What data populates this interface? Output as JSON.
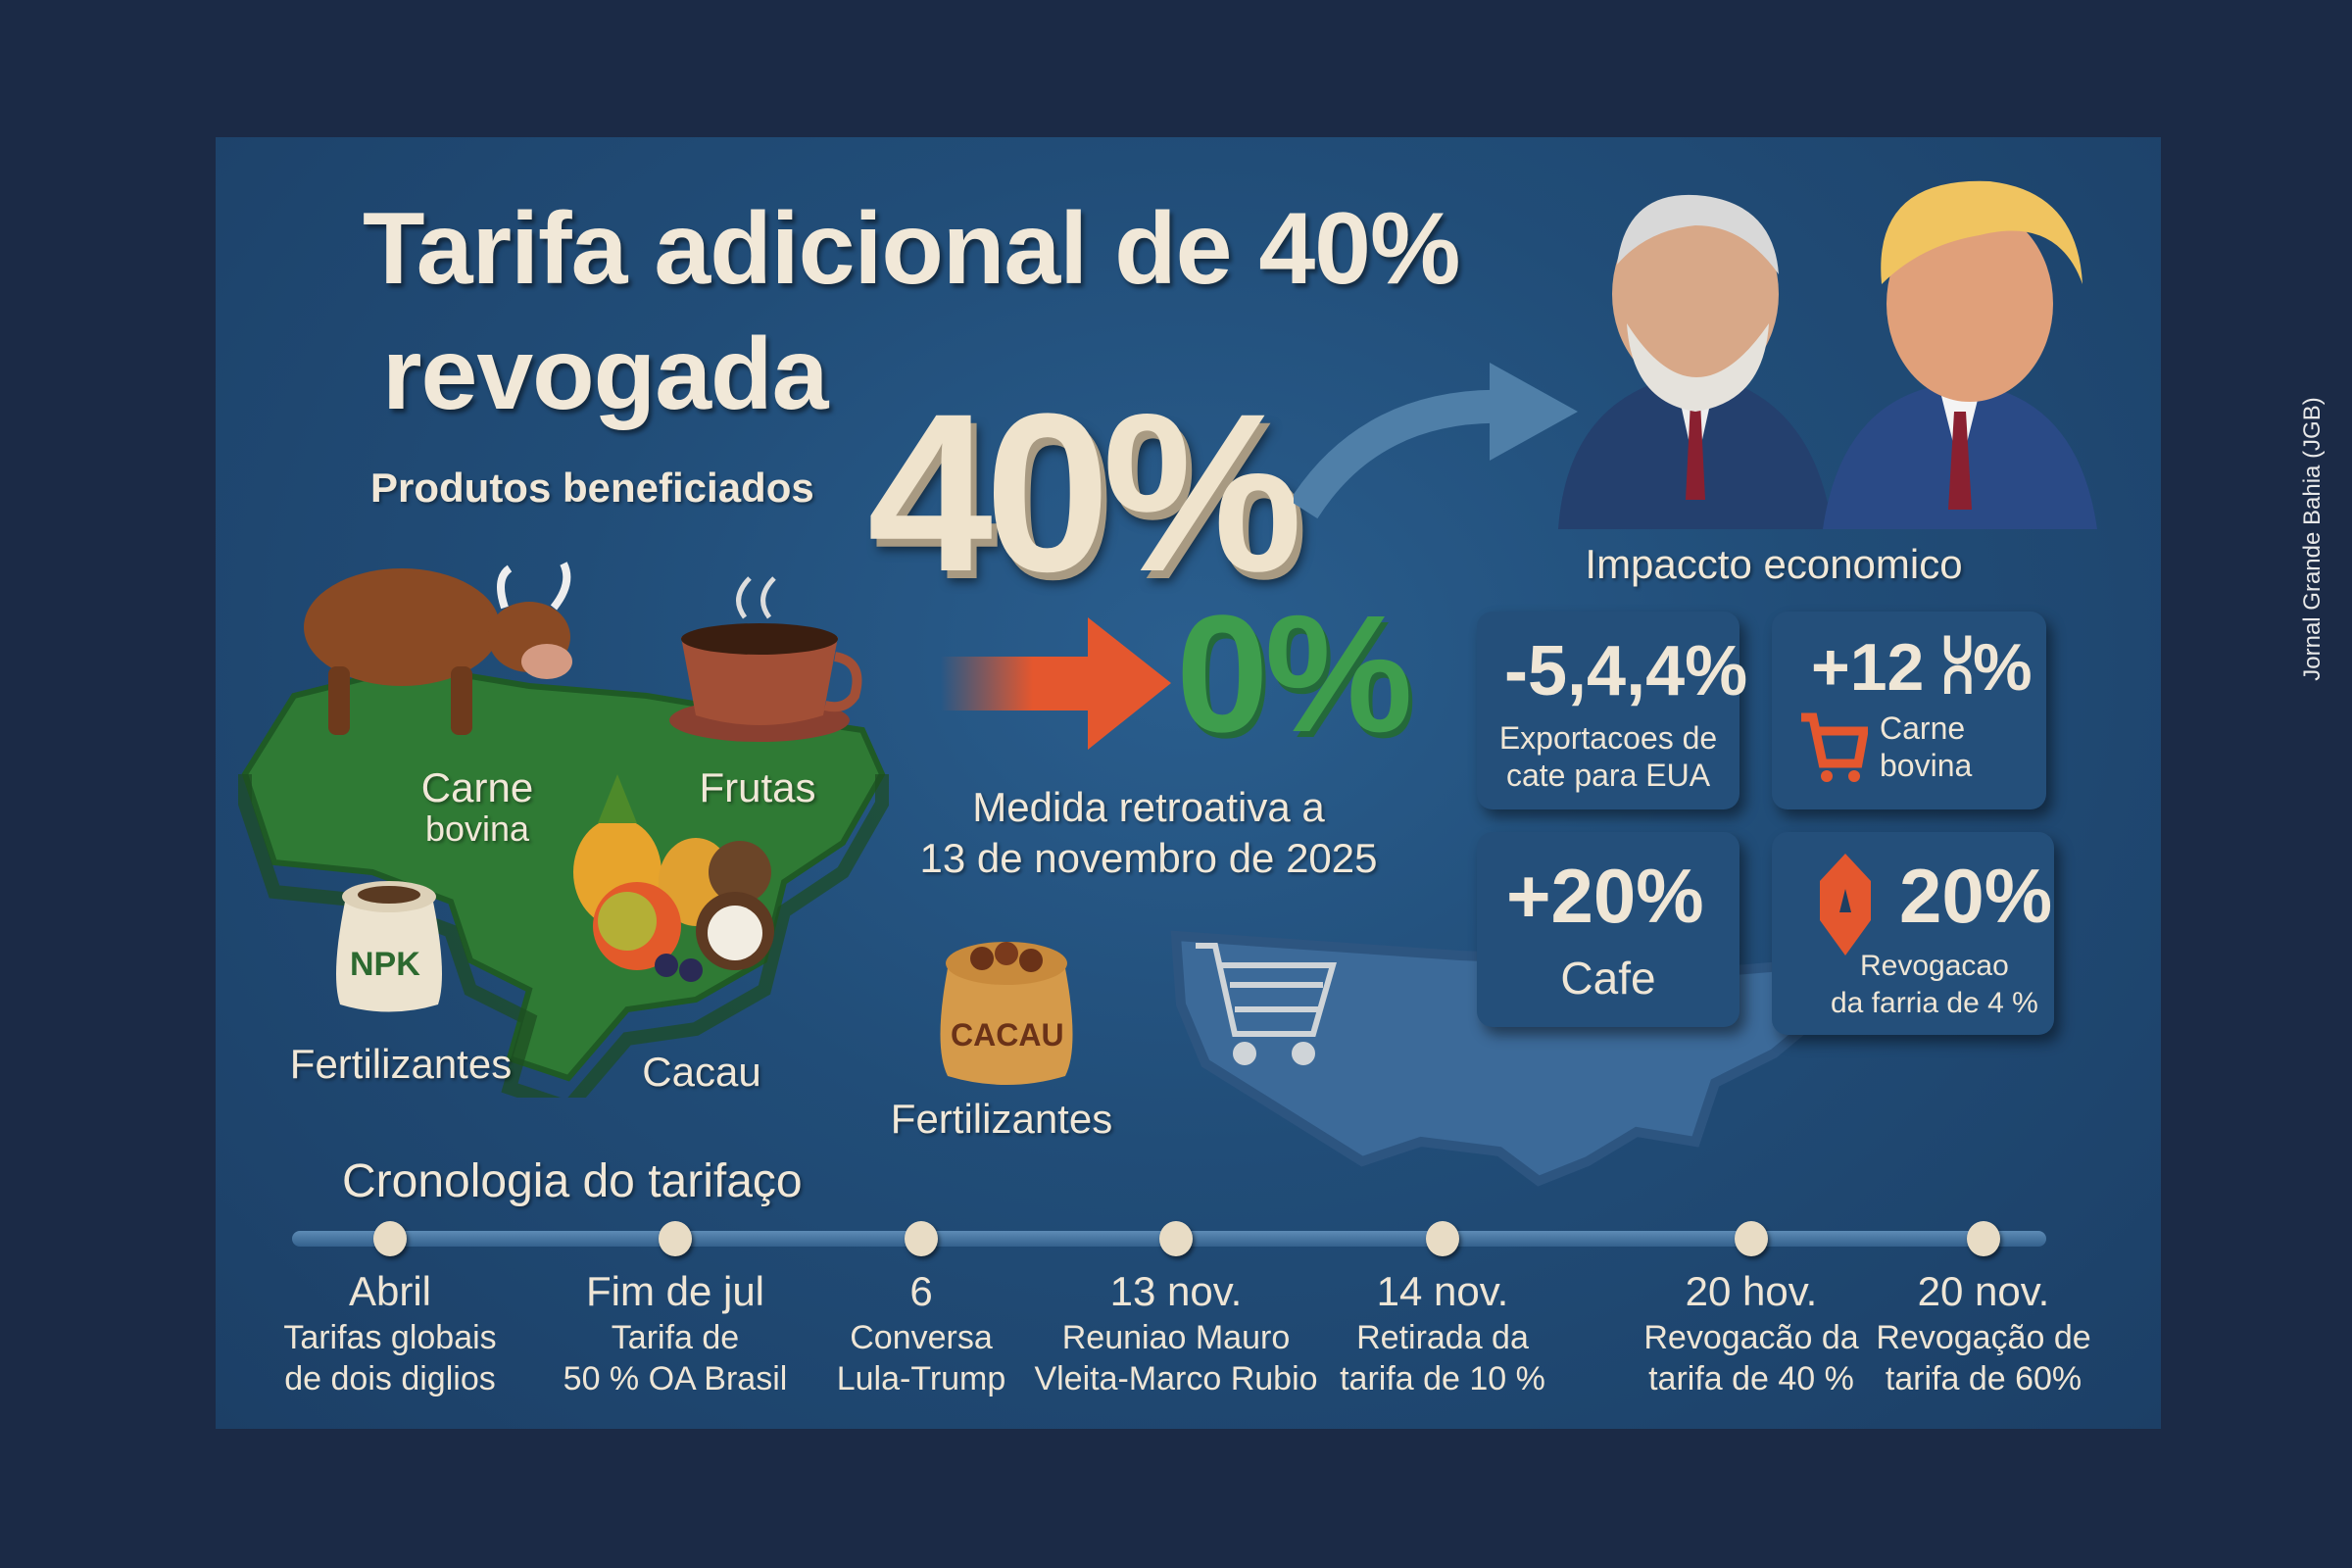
{
  "title": {
    "line1": "Tarifa adicional de 40%",
    "line2": "revogada"
  },
  "products": {
    "heading": "Produtos beneficiados",
    "carne": "Carne",
    "bovina": "bovina",
    "frutas": "Frutas",
    "fertilizantes_left": "Fertilizantes",
    "cacau": "Cacau",
    "npk_sack": "NPK",
    "cacau_sack": "CACAU",
    "fertilizantes_center": "Fertilizantes"
  },
  "tariff": {
    "from": "40%",
    "to": "0%",
    "note_line1": "Medida retroativa a",
    "note_line2": "13 de novembro de 2025"
  },
  "impact": {
    "heading": "Impaccto economico",
    "cards": [
      {
        "value": "-5,4,4%",
        "label_line1": "Exportacoes de",
        "label_line2": "cate para EUA"
      },
      {
        "value": "+12 ⩆%",
        "label_line1": "Carne",
        "label_line2": "bovina"
      },
      {
        "value": "+20%",
        "label_line1": "Cafe",
        "label_line2": ""
      },
      {
        "value": "20%",
        "label_line1": "Revogacao",
        "label_line2": "da farria de 4 %"
      }
    ]
  },
  "colors": {
    "accent_orange": "#e4572e",
    "green": "#3e9d4d",
    "map_green": "#2f7a34",
    "panel": "#214d78"
  },
  "timeline": {
    "heading": "Cronologia do tarifaço",
    "events": [
      {
        "date": "Abril",
        "line1": "Tarifas globais",
        "line2": "de dois diglios"
      },
      {
        "date": "Fim de jul",
        "line1": "Tarifa de",
        "line2": "50 % OA Brasil"
      },
      {
        "date": "6",
        "line1": "Conversa",
        "line2": "Lula-Trump"
      },
      {
        "date": "13 nov.",
        "line1": "Reuniao Mauro",
        "line2": "Vleita-Marco Rubio"
      },
      {
        "date": "14 nov.",
        "line1": "Retirada da",
        "line2": "tarifa de 10 %"
      },
      {
        "date": "20 hov.",
        "line1": "Revogacão da",
        "line2": "tarifa de 40 %"
      },
      {
        "date": "20 nov.",
        "line1": "Revogação de",
        "line2": "tarifa de 60%"
      }
    ]
  },
  "watermark": "Jornal Grande Bahia (JGB)"
}
